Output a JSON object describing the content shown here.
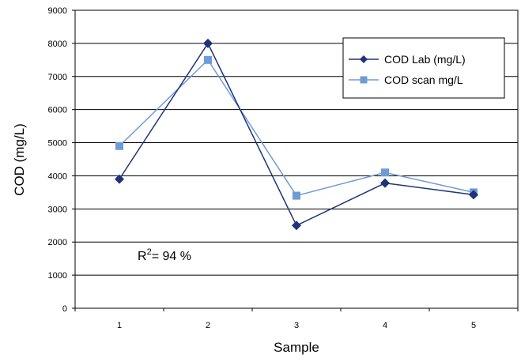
{
  "chart_data": {
    "type": "line",
    "xlabel": "Sample",
    "ylabel": "COD (mg/L)",
    "categories": [
      "1",
      "2",
      "3",
      "4",
      "5"
    ],
    "ylim": [
      0,
      9000
    ],
    "yticks": [
      "0",
      "1000",
      "2000",
      "3000",
      "4000",
      "5000",
      "6000",
      "7000",
      "8000",
      "9000"
    ],
    "grid": "horizontal",
    "legend_position": "top-right",
    "annotation": {
      "prefix": "R",
      "sup": "2",
      "suffix": "= 94 %"
    },
    "series": [
      {
        "name": "COD Lab (mg/L)",
        "values": [
          3900,
          8000,
          2500,
          3780,
          3430
        ],
        "color": "#1f3378",
        "marker": "diamond"
      },
      {
        "name": "COD scan mg/L",
        "values": [
          4900,
          7500,
          3400,
          4100,
          3500
        ],
        "color": "#6f9bd6",
        "marker": "square"
      }
    ]
  }
}
